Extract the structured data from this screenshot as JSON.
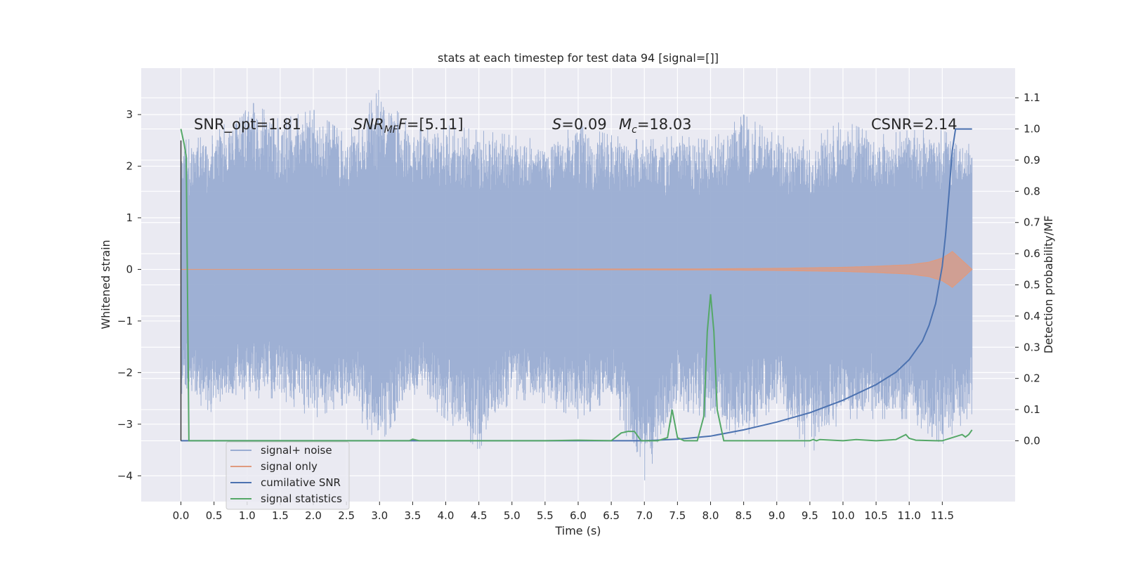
{
  "chart_data": {
    "type": "line",
    "title": "stats at each timestep for test data 94 [signal=[]]",
    "xlabel": "Time (s)",
    "ylabel_left": "Whitened strain",
    "ylabel_right": "Detection probability/MF",
    "x_ticks": [
      "0.0",
      "0.5",
      "1.0",
      "1.5",
      "2.0",
      "2.5",
      "3.0",
      "3.5",
      "4.0",
      "4.5",
      "5.0",
      "5.5",
      "6.0",
      "6.5",
      "7.0",
      "7.5",
      "8.0",
      "8.5",
      "9.0",
      "9.5",
      "10.0",
      "10.5",
      "11.0",
      "11.5"
    ],
    "y_left_ticks": [
      "3",
      "2",
      "1",
      "0",
      "−1",
      "−2",
      "−3",
      "−4"
    ],
    "y_right_ticks": [
      "1.1",
      "1.0",
      "0.9",
      "0.8",
      "0.7",
      "0.6",
      "0.5",
      "0.4",
      "0.3",
      "0.2",
      "0.1",
      "0.0"
    ],
    "xlim": [
      -0.6,
      12.6
    ],
    "ylim_left": [
      -4.5,
      3.9
    ],
    "ylim_right": [
      -0.195,
      1.195
    ],
    "grid": true,
    "legend_position": "lower-left",
    "annotations": {
      "snr_opt": "SNR_opt=1.81",
      "snr_mf_main": "SNR",
      "snr_mf_sub": "MF",
      "snr_mf_value": "=[5.11]",
      "s_symbol": "S",
      "s_value": "=0.09",
      "mc_symbol": "M",
      "mc_sub": "c",
      "mc_value": "=18.03",
      "csnr": "CSNR=2.14"
    },
    "series": [
      {
        "name": "signal+ noise",
        "color": "#9aadd2",
        "axis": "left",
        "envelope_x": [
          0.0,
          0.5,
          1.0,
          1.5,
          2.0,
          2.5,
          3.0,
          3.5,
          4.0,
          4.5,
          5.0,
          5.5,
          6.0,
          6.5,
          7.0,
          7.5,
          8.0,
          8.5,
          9.0,
          9.5,
          10.0,
          10.5,
          11.0,
          11.5,
          11.95
        ],
        "envelope_upper": [
          2.5,
          2.6,
          3.3,
          2.9,
          3.1,
          2.6,
          3.5,
          2.7,
          2.8,
          2.7,
          2.6,
          2.5,
          2.8,
          2.6,
          2.5,
          2.6,
          2.5,
          3.0,
          2.6,
          2.5,
          2.9,
          2.6,
          2.7,
          2.7,
          2.4
        ],
        "envelope_lower": [
          -2.4,
          -2.8,
          -2.5,
          -2.5,
          -2.9,
          -2.6,
          -3.4,
          -2.4,
          -2.9,
          -3.5,
          -2.5,
          -2.6,
          -2.9,
          -2.5,
          -4.1,
          -2.7,
          -2.9,
          -3.3,
          -2.6,
          -3.6,
          -2.9,
          -2.9,
          -2.9,
          -3.4,
          -2.8
        ]
      },
      {
        "name": "signal only",
        "color": "#e09a7e",
        "axis": "left",
        "x": [
          0.0,
          2.0,
          4.0,
          6.0,
          8.0,
          9.0,
          10.0,
          10.5,
          11.0,
          11.3,
          11.5,
          11.6,
          11.65,
          11.95
        ],
        "amplitude": [
          0.0,
          0.0,
          0.0,
          0.005,
          0.01,
          0.02,
          0.04,
          0.06,
          0.09,
          0.14,
          0.22,
          0.3,
          0.35,
          0.0
        ]
      },
      {
        "name": "cumilative SNR",
        "color": "#4c72b0",
        "axis": "right",
        "x": [
          0.0,
          6.0,
          7.0,
          7.5,
          8.0,
          8.5,
          9.0,
          9.5,
          10.0,
          10.5,
          10.8,
          11.0,
          11.2,
          11.3,
          11.4,
          11.5,
          11.55,
          11.6,
          11.65,
          11.7,
          11.75,
          11.95
        ],
        "values": [
          0.0,
          0.0,
          0.0,
          0.005,
          0.015,
          0.035,
          0.06,
          0.09,
          0.13,
          0.18,
          0.22,
          0.26,
          0.32,
          0.37,
          0.44,
          0.56,
          0.66,
          0.79,
          0.93,
          1.0,
          1.0,
          1.0
        ]
      },
      {
        "name": "signal statistics",
        "color": "#55a868",
        "axis": "right",
        "x": [
          0.0,
          0.05,
          0.08,
          0.12,
          0.5,
          1.0,
          2.0,
          3.0,
          3.45,
          3.5,
          3.6,
          4.0,
          5.0,
          5.5,
          6.0,
          6.5,
          6.65,
          6.75,
          6.85,
          6.95,
          7.0,
          7.2,
          7.35,
          7.42,
          7.5,
          7.6,
          7.8,
          7.9,
          7.95,
          8.0,
          8.05,
          8.1,
          8.2,
          8.5,
          9.0,
          9.5,
          9.55,
          9.6,
          9.65,
          10.0,
          10.2,
          10.5,
          10.8,
          10.95,
          11.0,
          11.1,
          11.4,
          11.5,
          11.8,
          11.85,
          11.9,
          11.95
        ],
        "values": [
          1.0,
          0.95,
          0.91,
          0.0,
          0.0,
          0.0,
          0.0,
          0.0,
          0.0,
          0.005,
          0.0,
          0.0,
          0.0,
          0.0,
          0.002,
          0.0,
          0.025,
          0.03,
          0.03,
          0.0,
          0.0,
          0.0,
          0.01,
          0.1,
          0.01,
          0.0,
          0.0,
          0.08,
          0.35,
          0.47,
          0.35,
          0.1,
          0.0,
          0.0,
          0.0,
          0.0,
          0.004,
          0.0,
          0.004,
          0.0,
          0.004,
          0.0,
          0.004,
          0.02,
          0.008,
          0.002,
          0.0,
          0.0,
          0.02,
          0.012,
          0.02,
          0.035
        ]
      }
    ]
  }
}
